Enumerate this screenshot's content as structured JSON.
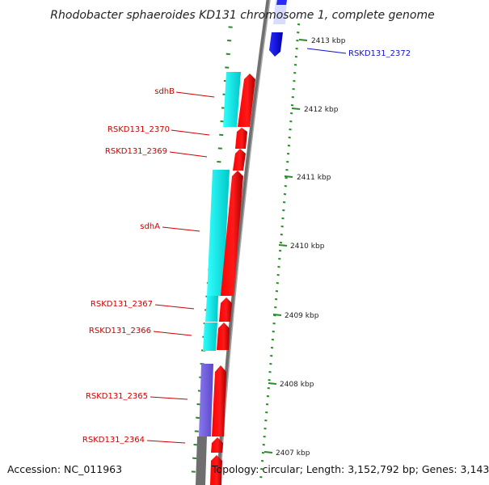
{
  "title": "Rhodobacter sphaeroides KD131 chromosome 1, complete genome",
  "accession": "Accession: NC_011963",
  "topology": "Topology: circular; Length: 3,152,792 bp; Genes: 3,143",
  "colors": {
    "forward_gene": "#ff0000",
    "reverse_gene": "#1a1aff",
    "cds_cyan": "#22ffff",
    "cds_purple": "#7b68ee",
    "backbone": "#808080",
    "tick_green": "#2a8a2a",
    "red_label": "#cc0000",
    "blue_label": "#1010cc"
  },
  "kbp_labels": [
    "2413 kbp",
    "2412 kbp",
    "2411 kbp",
    "2410 kbp",
    "2409 kbp",
    "2408 kbp",
    "2407 kbp"
  ],
  "gene_labels": [
    {
      "text": "sdhB",
      "color": "red"
    },
    {
      "text": "RSKD131_2370",
      "color": "red"
    },
    {
      "text": "RSKD131_2369",
      "color": "red"
    },
    {
      "text": "sdhA",
      "color": "red"
    },
    {
      "text": "RSKD131_2367",
      "color": "red"
    },
    {
      "text": "RSKD131_2366",
      "color": "red"
    },
    {
      "text": "RSKD131_2365",
      "color": "red"
    },
    {
      "text": "RSKD131_2364",
      "color": "red"
    },
    {
      "text": "RSKD131_2372",
      "color": "blue"
    }
  ]
}
